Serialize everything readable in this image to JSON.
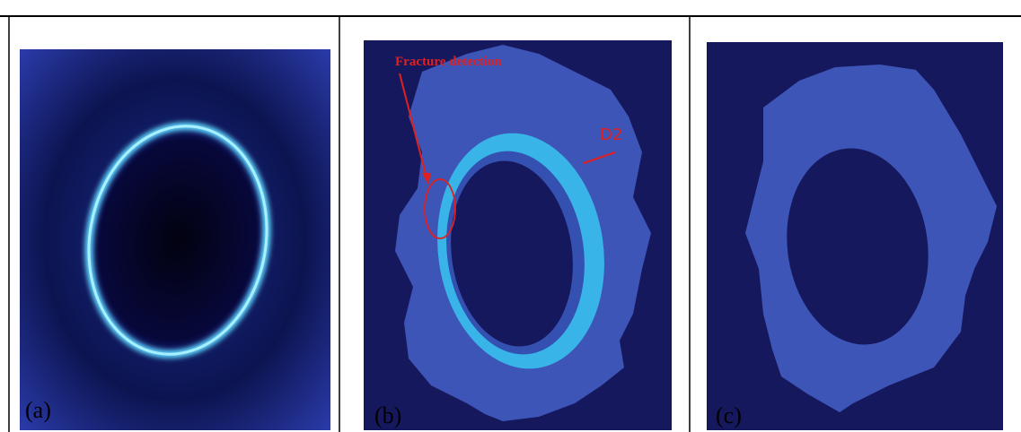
{
  "panels": [
    {
      "label": "(a)"
    },
    {
      "label": "(b)",
      "annotations": [
        "Fracture detection",
        "D2"
      ]
    },
    {
      "label": "(c)"
    }
  ]
}
